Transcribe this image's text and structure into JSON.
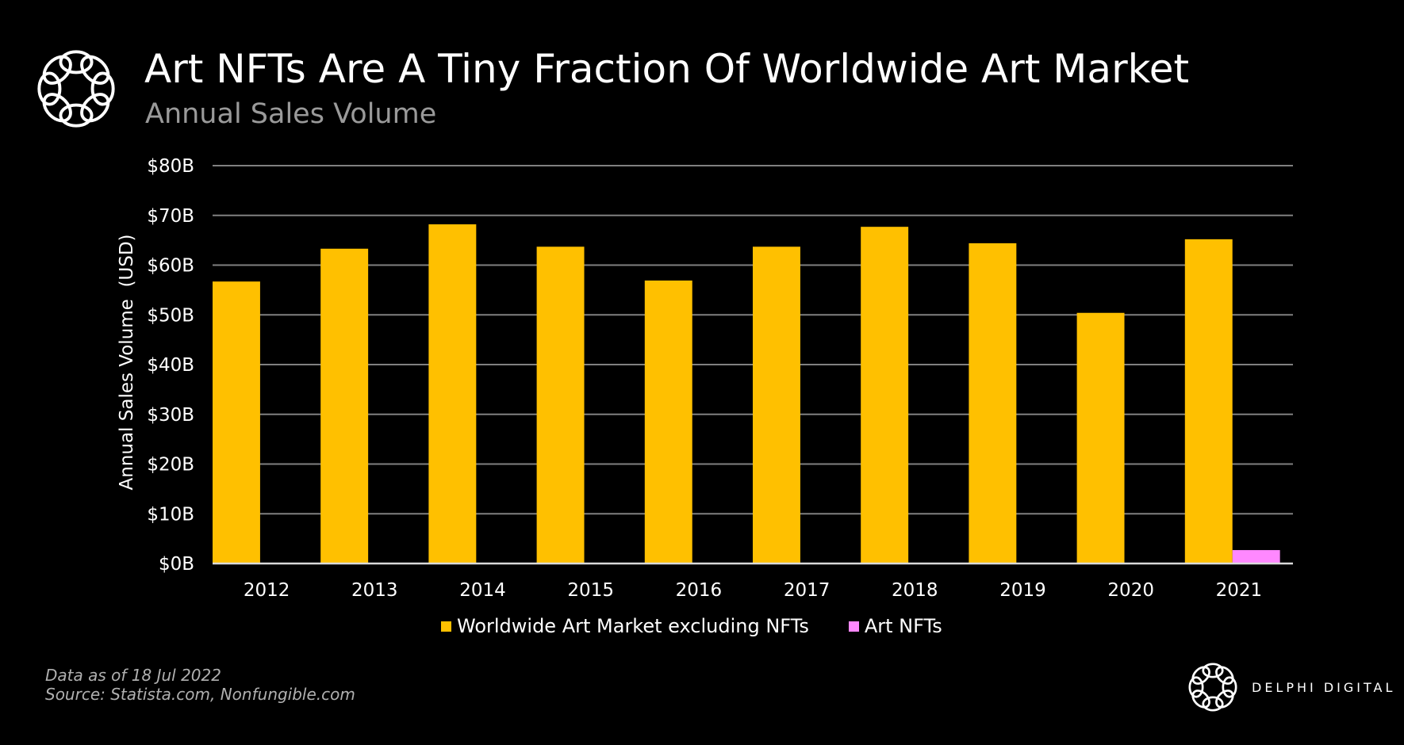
{
  "header": {
    "title": "Art NFTs Are A Tiny Fraction Of Worldwide Art Market",
    "subtitle": "Annual Sales Volume",
    "logo_icon": "delphi-knot-logo"
  },
  "chart_data": {
    "type": "bar",
    "title": "Art NFTs Are A Tiny Fraction Of Worldwide Art Market",
    "subtitle": "Annual Sales Volume",
    "xlabel": "",
    "ylabel": "Annual Sales Volume  (USD)",
    "categories": [
      "2012",
      "2013",
      "2014",
      "2015",
      "2016",
      "2017",
      "2018",
      "2019",
      "2020",
      "2021"
    ],
    "series": [
      {
        "name": "Worldwide Art Market excluding NFTs",
        "color": "#FFC000",
        "values": [
          56.7,
          63.3,
          68.2,
          63.7,
          56.9,
          63.7,
          67.7,
          64.4,
          50.4,
          65.2
        ]
      },
      {
        "name": "Art NFTs",
        "color": "#FF88FF",
        "values": [
          0,
          0,
          0,
          0,
          0,
          0,
          0,
          0,
          0,
          2.7
        ]
      }
    ],
    "unit": "USD billions",
    "ylim": [
      0,
      80
    ],
    "yticks": [
      0,
      10,
      20,
      30,
      40,
      50,
      60,
      70,
      80
    ],
    "ytick_labels": [
      "$0B",
      "$10B",
      "$20B",
      "$30B",
      "$40B",
      "$50B",
      "$60B",
      "$70B",
      "$80B"
    ],
    "grid": true,
    "legend_position": "bottom-center"
  },
  "legend": {
    "items": [
      {
        "label": "Worldwide Art Market excluding NFTs",
        "color": "#FFC000"
      },
      {
        "label": "Art NFTs",
        "color": "#FF88FF"
      }
    ]
  },
  "footer": {
    "data_date": "Data as of 18 Jul 2022",
    "source": "Source: Statista.com, Nonfungible.com"
  },
  "brand": {
    "name": "DELPHI DIGITAL",
    "logo_icon": "delphi-knot-logo"
  },
  "colors": {
    "background": "#000000",
    "gridline": "#808080",
    "baseline": "#d9d9d9"
  }
}
